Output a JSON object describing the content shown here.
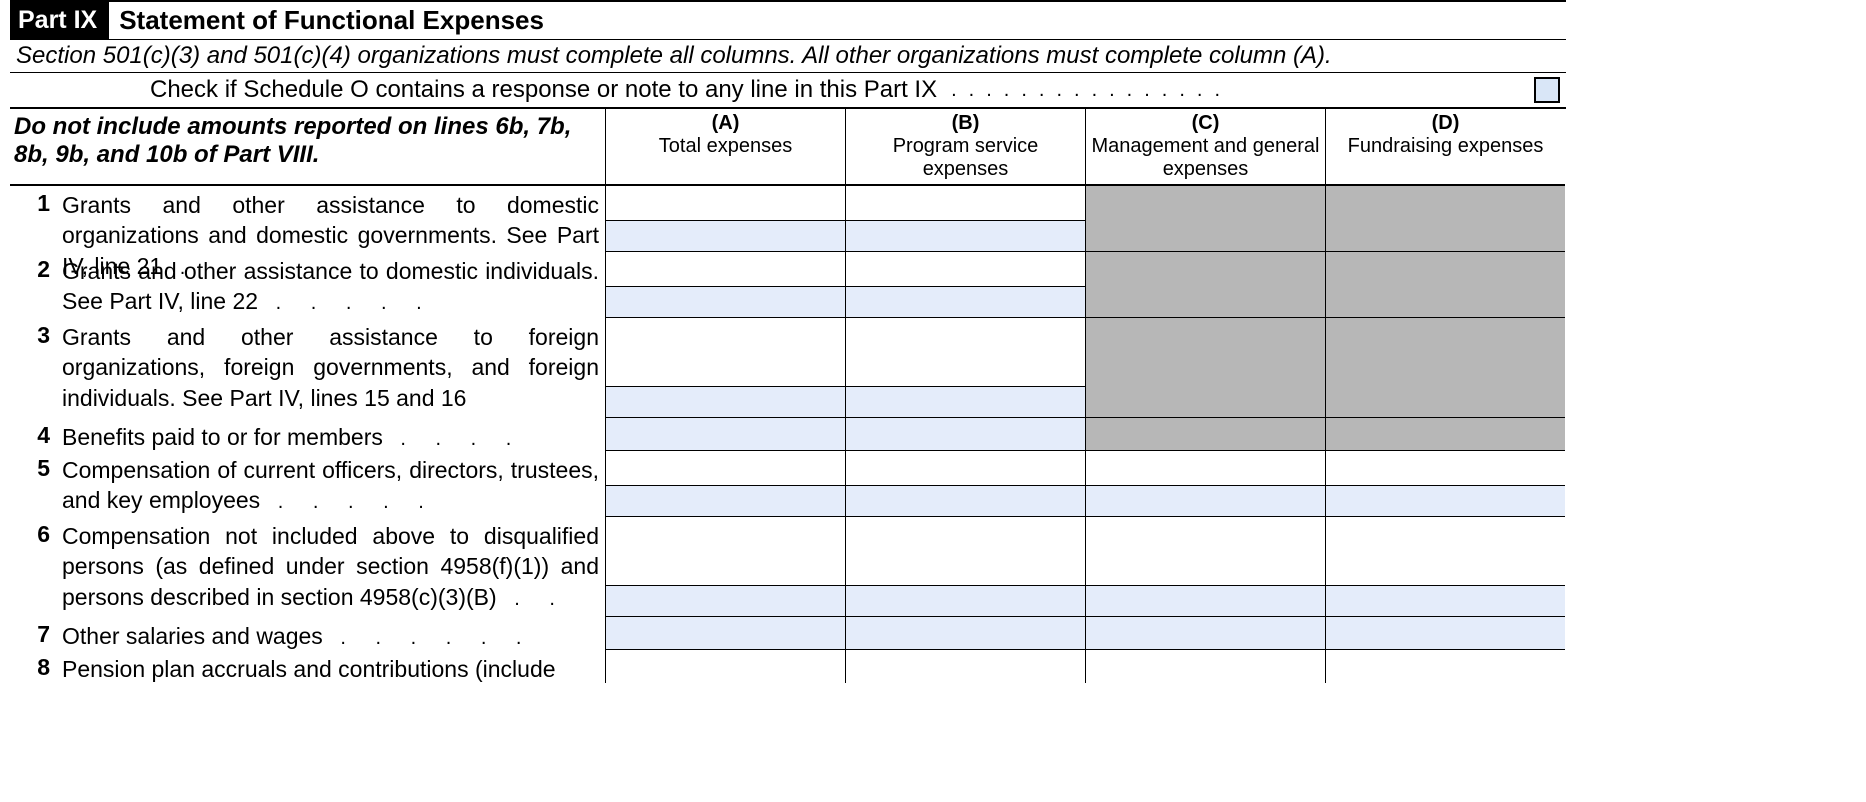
{
  "part": {
    "badge": "Part IX",
    "title": "Statement of Functional Expenses"
  },
  "instruction": "Section 501(c)(3) and 501(c)(4) organizations must complete all columns. All other organizations must complete column (A).",
  "schedule_o": {
    "text": "Check if Schedule O contains a response or note to any line in this Part IX",
    "checked": false
  },
  "header_note": "Do not include amounts reported on lines 6b, 7b, 8b, 9b, and 10b of Part VIII.",
  "columns": [
    {
      "letter": "(A)",
      "label": "Total expenses"
    },
    {
      "letter": "(B)",
      "label": "Program service expenses"
    },
    {
      "letter": "(C)",
      "label": "Management and general expenses"
    },
    {
      "letter": "(D)",
      "label": "Fundraising expenses"
    }
  ],
  "rows": [
    {
      "num": "1",
      "text": "Grants and other assistance to domestic organizations and domestic governments. See Part IV, line 21",
      "leader": " .",
      "shaded_cd": true,
      "lines": 2
    },
    {
      "num": "2",
      "text": "Grants and other assistance to domestic individuals. See Part IV, line 22",
      "leader": " . . . . .",
      "shaded_cd": true,
      "lines": 2
    },
    {
      "num": "3",
      "text": "Grants and other assistance to foreign organizations, foreign governments, and foreign individuals. See Part IV, lines 15 and 16",
      "leader": "",
      "shaded_cd": true,
      "lines": 3
    },
    {
      "num": "4",
      "text": "Benefits paid to or for members",
      "leader": " . . . .",
      "shaded_cd": true,
      "lines": 1
    },
    {
      "num": "5",
      "text": "Compensation of current officers, directors, trustees, and key employees",
      "leader": " . . . . .",
      "shaded_cd": false,
      "lines": 2
    },
    {
      "num": "6",
      "text": "Compensation not included above to disqualified persons (as defined under section 4958(f)(1)) and persons described in section 4958(c)(3)(B)",
      "leader": " . .",
      "shaded_cd": false,
      "lines": 3
    },
    {
      "num": "7",
      "text": "Other salaries and wages",
      "leader": " . . . . . .",
      "shaded_cd": false,
      "lines": 1
    },
    {
      "num": "8",
      "text": "Pension plan accruals and contributions (include",
      "leader": "",
      "shaded_cd": false,
      "lines": 1,
      "open": true
    }
  ],
  "colors": {
    "input_bg": "#e4ecfa",
    "shade_bg": "#b7b7b7",
    "checkbox_bg": "#d9e6f7"
  }
}
